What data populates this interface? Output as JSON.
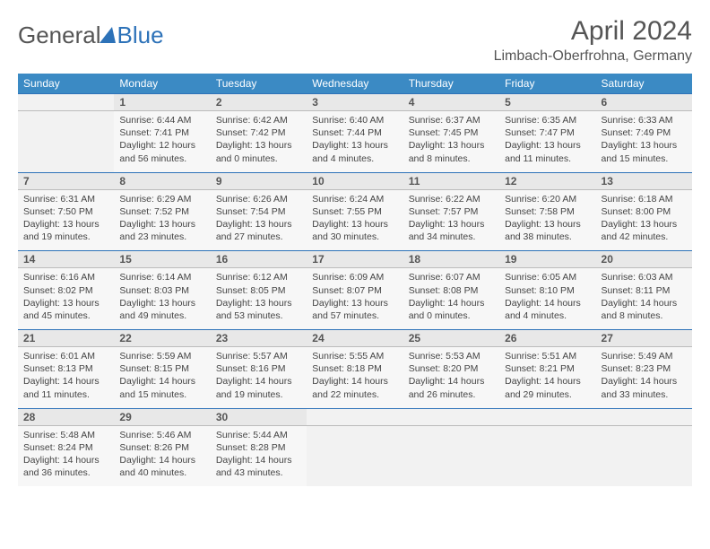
{
  "logo": {
    "prefix": "General",
    "suffix": "Blue"
  },
  "title": "April 2024",
  "location": "Limbach-Oberfrohna, Germany",
  "colors": {
    "header_bg": "#3b8ac4",
    "accent": "#2d72b8",
    "daynum_bg": "#e8e8e8",
    "cell_bg": "#f7f7f7",
    "text": "#444444"
  },
  "day_headers": [
    "Sunday",
    "Monday",
    "Tuesday",
    "Wednesday",
    "Thursday",
    "Friday",
    "Saturday"
  ],
  "weeks": [
    [
      {
        "num": "",
        "lines": [
          "",
          "",
          "",
          ""
        ]
      },
      {
        "num": "1",
        "lines": [
          "Sunrise: 6:44 AM",
          "Sunset: 7:41 PM",
          "Daylight: 12 hours",
          "and 56 minutes."
        ]
      },
      {
        "num": "2",
        "lines": [
          "Sunrise: 6:42 AM",
          "Sunset: 7:42 PM",
          "Daylight: 13 hours",
          "and 0 minutes."
        ]
      },
      {
        "num": "3",
        "lines": [
          "Sunrise: 6:40 AM",
          "Sunset: 7:44 PM",
          "Daylight: 13 hours",
          "and 4 minutes."
        ]
      },
      {
        "num": "4",
        "lines": [
          "Sunrise: 6:37 AM",
          "Sunset: 7:45 PM",
          "Daylight: 13 hours",
          "and 8 minutes."
        ]
      },
      {
        "num": "5",
        "lines": [
          "Sunrise: 6:35 AM",
          "Sunset: 7:47 PM",
          "Daylight: 13 hours",
          "and 11 minutes."
        ]
      },
      {
        "num": "6",
        "lines": [
          "Sunrise: 6:33 AM",
          "Sunset: 7:49 PM",
          "Daylight: 13 hours",
          "and 15 minutes."
        ]
      }
    ],
    [
      {
        "num": "7",
        "lines": [
          "Sunrise: 6:31 AM",
          "Sunset: 7:50 PM",
          "Daylight: 13 hours",
          "and 19 minutes."
        ]
      },
      {
        "num": "8",
        "lines": [
          "Sunrise: 6:29 AM",
          "Sunset: 7:52 PM",
          "Daylight: 13 hours",
          "and 23 minutes."
        ]
      },
      {
        "num": "9",
        "lines": [
          "Sunrise: 6:26 AM",
          "Sunset: 7:54 PM",
          "Daylight: 13 hours",
          "and 27 minutes."
        ]
      },
      {
        "num": "10",
        "lines": [
          "Sunrise: 6:24 AM",
          "Sunset: 7:55 PM",
          "Daylight: 13 hours",
          "and 30 minutes."
        ]
      },
      {
        "num": "11",
        "lines": [
          "Sunrise: 6:22 AM",
          "Sunset: 7:57 PM",
          "Daylight: 13 hours",
          "and 34 minutes."
        ]
      },
      {
        "num": "12",
        "lines": [
          "Sunrise: 6:20 AM",
          "Sunset: 7:58 PM",
          "Daylight: 13 hours",
          "and 38 minutes."
        ]
      },
      {
        "num": "13",
        "lines": [
          "Sunrise: 6:18 AM",
          "Sunset: 8:00 PM",
          "Daylight: 13 hours",
          "and 42 minutes."
        ]
      }
    ],
    [
      {
        "num": "14",
        "lines": [
          "Sunrise: 6:16 AM",
          "Sunset: 8:02 PM",
          "Daylight: 13 hours",
          "and 45 minutes."
        ]
      },
      {
        "num": "15",
        "lines": [
          "Sunrise: 6:14 AM",
          "Sunset: 8:03 PM",
          "Daylight: 13 hours",
          "and 49 minutes."
        ]
      },
      {
        "num": "16",
        "lines": [
          "Sunrise: 6:12 AM",
          "Sunset: 8:05 PM",
          "Daylight: 13 hours",
          "and 53 minutes."
        ]
      },
      {
        "num": "17",
        "lines": [
          "Sunrise: 6:09 AM",
          "Sunset: 8:07 PM",
          "Daylight: 13 hours",
          "and 57 minutes."
        ]
      },
      {
        "num": "18",
        "lines": [
          "Sunrise: 6:07 AM",
          "Sunset: 8:08 PM",
          "Daylight: 14 hours",
          "and 0 minutes."
        ]
      },
      {
        "num": "19",
        "lines": [
          "Sunrise: 6:05 AM",
          "Sunset: 8:10 PM",
          "Daylight: 14 hours",
          "and 4 minutes."
        ]
      },
      {
        "num": "20",
        "lines": [
          "Sunrise: 6:03 AM",
          "Sunset: 8:11 PM",
          "Daylight: 14 hours",
          "and 8 minutes."
        ]
      }
    ],
    [
      {
        "num": "21",
        "lines": [
          "Sunrise: 6:01 AM",
          "Sunset: 8:13 PM",
          "Daylight: 14 hours",
          "and 11 minutes."
        ]
      },
      {
        "num": "22",
        "lines": [
          "Sunrise: 5:59 AM",
          "Sunset: 8:15 PM",
          "Daylight: 14 hours",
          "and 15 minutes."
        ]
      },
      {
        "num": "23",
        "lines": [
          "Sunrise: 5:57 AM",
          "Sunset: 8:16 PM",
          "Daylight: 14 hours",
          "and 19 minutes."
        ]
      },
      {
        "num": "24",
        "lines": [
          "Sunrise: 5:55 AM",
          "Sunset: 8:18 PM",
          "Daylight: 14 hours",
          "and 22 minutes."
        ]
      },
      {
        "num": "25",
        "lines": [
          "Sunrise: 5:53 AM",
          "Sunset: 8:20 PM",
          "Daylight: 14 hours",
          "and 26 minutes."
        ]
      },
      {
        "num": "26",
        "lines": [
          "Sunrise: 5:51 AM",
          "Sunset: 8:21 PM",
          "Daylight: 14 hours",
          "and 29 minutes."
        ]
      },
      {
        "num": "27",
        "lines": [
          "Sunrise: 5:49 AM",
          "Sunset: 8:23 PM",
          "Daylight: 14 hours",
          "and 33 minutes."
        ]
      }
    ],
    [
      {
        "num": "28",
        "lines": [
          "Sunrise: 5:48 AM",
          "Sunset: 8:24 PM",
          "Daylight: 14 hours",
          "and 36 minutes."
        ]
      },
      {
        "num": "29",
        "lines": [
          "Sunrise: 5:46 AM",
          "Sunset: 8:26 PM",
          "Daylight: 14 hours",
          "and 40 minutes."
        ]
      },
      {
        "num": "30",
        "lines": [
          "Sunrise: 5:44 AM",
          "Sunset: 8:28 PM",
          "Daylight: 14 hours",
          "and 43 minutes."
        ]
      },
      {
        "num": "",
        "lines": [
          "",
          "",
          "",
          ""
        ]
      },
      {
        "num": "",
        "lines": [
          "",
          "",
          "",
          ""
        ]
      },
      {
        "num": "",
        "lines": [
          "",
          "",
          "",
          ""
        ]
      },
      {
        "num": "",
        "lines": [
          "",
          "",
          "",
          ""
        ]
      }
    ]
  ]
}
